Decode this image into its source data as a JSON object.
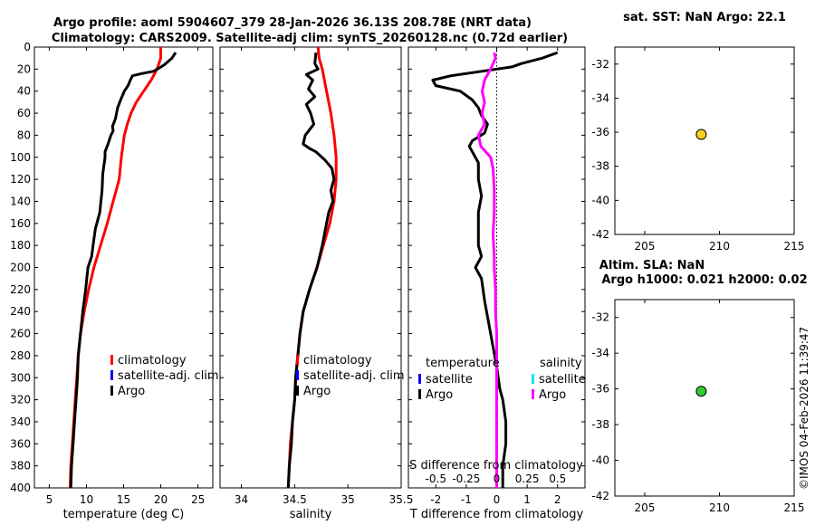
{
  "title": {
    "line1": "Argo profile: aoml 5904607_379 28-Jan-2026 36.13S 208.78E (NRT data)",
    "line2": "Climatology: CARS2009. Satellite-adj clim: synTS_20260128.nc (0.72d earlier)"
  },
  "depth_ticks": [
    "0",
    "20",
    "40",
    "60",
    "80",
    "100",
    "120",
    "140",
    "160",
    "180",
    "200",
    "220",
    "240",
    "260",
    "280",
    "300",
    "320",
    "340",
    "360",
    "380",
    "400"
  ],
  "chart_data": [
    {
      "type": "line",
      "name": "temperature-panel",
      "xlabel": "temperature (deg C)",
      "xlim": [
        3,
        27
      ],
      "ylim": [
        0,
        400
      ],
      "y_reversed": true,
      "xticks": [
        "5",
        "10",
        "15",
        "20",
        "25"
      ],
      "xtick_values": [
        5,
        10,
        15,
        20,
        25
      ],
      "legend": [
        "climatology",
        "satellite-adj. clim",
        "Argo"
      ],
      "series": [
        {
          "name": "climatology",
          "color": "#ff0000",
          "points": [
            [
              20.0,
              0
            ],
            [
              20.0,
              10
            ],
            [
              19.5,
              20
            ],
            [
              18.7,
              30
            ],
            [
              17.7,
              40
            ],
            [
              16.7,
              50
            ],
            [
              16.0,
              60
            ],
            [
              15.5,
              70
            ],
            [
              15.1,
              80
            ],
            [
              14.7,
              100
            ],
            [
              14.4,
              120
            ],
            [
              13.6,
              140
            ],
            [
              12.8,
              160
            ],
            [
              11.9,
              180
            ],
            [
              11.0,
              200
            ],
            [
              10.3,
              220
            ],
            [
              9.7,
              240
            ],
            [
              9.2,
              260
            ],
            [
              8.9,
              280
            ],
            [
              8.7,
              300
            ],
            [
              8.5,
              320
            ],
            [
              8.3,
              340
            ],
            [
              8.1,
              360
            ],
            [
              7.9,
              380
            ],
            [
              7.8,
              400
            ]
          ]
        },
        {
          "name": "Argo",
          "color": "#000000",
          "points": [
            [
              22.0,
              5
            ],
            [
              21.5,
              10
            ],
            [
              21.0,
              13
            ],
            [
              20.5,
              16
            ],
            [
              19.8,
              19
            ],
            [
              19.0,
              22
            ],
            [
              17.5,
              24
            ],
            [
              16.2,
              26
            ],
            [
              15.9,
              30
            ],
            [
              15.6,
              35
            ],
            [
              15.1,
              40
            ],
            [
              14.6,
              48
            ],
            [
              14.2,
              55
            ],
            [
              13.9,
              65
            ],
            [
              13.5,
              72
            ],
            [
              13.6,
              76
            ],
            [
              13.3,
              80
            ],
            [
              12.9,
              88
            ],
            [
              12.5,
              95
            ],
            [
              12.5,
              100
            ],
            [
              12.2,
              115
            ],
            [
              12.1,
              130
            ],
            [
              11.8,
              150
            ],
            [
              11.2,
              165
            ],
            [
              10.9,
              180
            ],
            [
              10.7,
              190
            ],
            [
              10.2,
              200
            ],
            [
              9.9,
              220
            ],
            [
              9.5,
              240
            ],
            [
              9.2,
              260
            ],
            [
              8.9,
              280
            ],
            [
              8.8,
              300
            ],
            [
              8.6,
              320
            ],
            [
              8.4,
              340
            ],
            [
              8.2,
              360
            ],
            [
              8.0,
              380
            ],
            [
              7.9,
              400
            ]
          ]
        }
      ]
    },
    {
      "type": "line",
      "name": "salinity-panel",
      "xlabel": "salinity",
      "xlim": [
        33.8,
        35.5
      ],
      "ylim": [
        0,
        400
      ],
      "y_reversed": true,
      "xticks": [
        "34",
        "34.5",
        "35",
        "35.5"
      ],
      "xtick_values": [
        34,
        34.5,
        35,
        35.5
      ],
      "legend": [
        "climatology",
        "satellite-adj. clim",
        "Argo"
      ],
      "series": [
        {
          "name": "climatology",
          "color": "#ff0000",
          "points": [
            [
              34.72,
              0
            ],
            [
              34.73,
              10
            ],
            [
              34.76,
              20
            ],
            [
              34.8,
              40
            ],
            [
              34.84,
              60
            ],
            [
              34.87,
              80
            ],
            [
              34.89,
              100
            ],
            [
              34.89,
              120
            ],
            [
              34.87,
              140
            ],
            [
              34.83,
              160
            ],
            [
              34.77,
              180
            ],
            [
              34.71,
              200
            ],
            [
              34.64,
              220
            ],
            [
              34.58,
              240
            ],
            [
              34.55,
              260
            ],
            [
              34.53,
              280
            ],
            [
              34.51,
              300
            ],
            [
              34.5,
              320
            ],
            [
              34.48,
              340
            ],
            [
              34.46,
              360
            ],
            [
              34.45,
              380
            ],
            [
              34.44,
              400
            ]
          ]
        },
        {
          "name": "Argo",
          "color": "#000000",
          "points": [
            [
              34.7,
              5
            ],
            [
              34.69,
              15
            ],
            [
              34.72,
              20
            ],
            [
              34.61,
              25
            ],
            [
              34.67,
              30
            ],
            [
              34.63,
              38
            ],
            [
              34.69,
              45
            ],
            [
              34.61,
              52
            ],
            [
              34.65,
              60
            ],
            [
              34.68,
              70
            ],
            [
              34.6,
              80
            ],
            [
              34.58,
              88
            ],
            [
              34.64,
              92
            ],
            [
              34.7,
              95
            ],
            [
              34.78,
              102
            ],
            [
              34.85,
              110
            ],
            [
              34.87,
              120
            ],
            [
              34.84,
              130
            ],
            [
              34.86,
              140
            ],
            [
              34.82,
              150
            ],
            [
              34.8,
              160
            ],
            [
              34.76,
              180
            ],
            [
              34.71,
              200
            ],
            [
              34.64,
              220
            ],
            [
              34.58,
              240
            ],
            [
              34.55,
              260
            ],
            [
              34.53,
              280
            ],
            [
              34.51,
              300
            ],
            [
              34.5,
              320
            ],
            [
              34.48,
              340
            ],
            [
              34.47,
              360
            ],
            [
              34.45,
              380
            ],
            [
              34.44,
              400
            ]
          ]
        }
      ]
    },
    {
      "type": "line",
      "name": "difference-panel",
      "xlabel": "T difference from climatology",
      "xlabel_top": "S difference from climatology",
      "xlim": [
        -2.9,
        2.9
      ],
      "ylim": [
        0,
        400
      ],
      "y_reversed": true,
      "xticks": [
        "-2",
        "-1",
        "0",
        "1",
        "2"
      ],
      "xtick_values": [
        -2,
        -1,
        0,
        1,
        2
      ],
      "s_ticks": [
        "-0.5",
        "-0.25",
        "0",
        "0.25",
        "0.5"
      ],
      "s_tick_values": [
        -0.5,
        -0.25,
        0,
        0.25,
        0.5
      ],
      "legend_t_title": "temperature",
      "legend_s_title": "salinity",
      "legend_t": [
        "satellite",
        "Argo"
      ],
      "legend_s": [
        "satellite",
        "Argo"
      ],
      "series": [
        {
          "name": "T difference Argo",
          "color": "#000000",
          "points": [
            [
              2.0,
              5
            ],
            [
              1.5,
              10
            ],
            [
              0.8,
              15
            ],
            [
              0.5,
              18
            ],
            [
              -0.5,
              22
            ],
            [
              -1.5,
              26
            ],
            [
              -2.1,
              30
            ],
            [
              -2.0,
              35
            ],
            [
              -1.2,
              40
            ],
            [
              -0.8,
              48
            ],
            [
              -0.6,
              55
            ],
            [
              -0.5,
              62
            ],
            [
              -0.3,
              70
            ],
            [
              -0.4,
              78
            ],
            [
              -0.8,
              85
            ],
            [
              -0.9,
              90
            ],
            [
              -0.8,
              95
            ],
            [
              -0.6,
              105
            ],
            [
              -0.6,
              120
            ],
            [
              -0.5,
              135
            ],
            [
              -0.6,
              150
            ],
            [
              -0.6,
              165
            ],
            [
              -0.6,
              180
            ],
            [
              -0.5,
              190
            ],
            [
              -0.7,
              200
            ],
            [
              -0.5,
              210
            ],
            [
              -0.4,
              230
            ],
            [
              -0.2,
              260
            ],
            [
              0.0,
              290
            ],
            [
              0.1,
              310
            ],
            [
              0.2,
              320
            ],
            [
              0.3,
              340
            ],
            [
              0.3,
              360
            ],
            [
              0.2,
              380
            ],
            [
              0.2,
              400
            ]
          ]
        },
        {
          "name": "S difference Argo",
          "color": "#ff00ff",
          "points": [
            [
              -0.02,
              5
            ],
            [
              -0.01,
              10
            ],
            [
              -0.05,
              20
            ],
            [
              -0.1,
              30
            ],
            [
              -0.12,
              40
            ],
            [
              -0.1,
              50
            ],
            [
              -0.12,
              60
            ],
            [
              -0.1,
              70
            ],
            [
              -0.15,
              80
            ],
            [
              -0.13,
              90
            ],
            [
              -0.05,
              100
            ],
            [
              -0.03,
              110
            ],
            [
              -0.02,
              130
            ],
            [
              -0.02,
              150
            ],
            [
              -0.03,
              170
            ],
            [
              -0.02,
              190
            ],
            [
              -0.02,
              200
            ],
            [
              -0.01,
              220
            ],
            [
              -0.01,
              240
            ],
            [
              0.0,
              260
            ],
            [
              0.0,
              280
            ],
            [
              0.0,
              300
            ],
            [
              0.0,
              320
            ],
            [
              0.0,
              340
            ],
            [
              0.0,
              360
            ],
            [
              0.0,
              380
            ],
            [
              0.0,
              400
            ]
          ]
        }
      ]
    },
    {
      "type": "scatter",
      "name": "sst-map",
      "title": "sat. SST: NaN Argo: 22.1",
      "xlim": [
        203,
        215
      ],
      "ylim": [
        -42,
        -31
      ],
      "xticks": [
        "205",
        "210",
        "215"
      ],
      "xtick_values": [
        205,
        210,
        215
      ],
      "yticks": [
        "-32",
        "-34",
        "-36",
        "-38",
        "-40",
        "-42"
      ],
      "ytick_values": [
        -32,
        -34,
        -36,
        -38,
        -40,
        -42
      ],
      "points": [
        {
          "x": 208.78,
          "y": -36.13,
          "color": "#f5d21e"
        }
      ]
    },
    {
      "type": "scatter",
      "name": "sla-map",
      "title1": "Altim. SLA: NaN",
      "title2": "Argo h1000: 0.021 h2000: 0.02",
      "xlim": [
        203,
        215
      ],
      "ylim": [
        -42,
        -31
      ],
      "xticks": [
        "205",
        "210",
        "215"
      ],
      "xtick_values": [
        205,
        210,
        215
      ],
      "yticks": [
        "-32",
        "-34",
        "-36",
        "-38",
        "-40",
        "-42"
      ],
      "ytick_values": [
        -32,
        -34,
        -36,
        -38,
        -40,
        -42
      ],
      "points": [
        {
          "x": 208.78,
          "y": -36.13,
          "color": "#33cc33"
        }
      ]
    }
  ],
  "watermark": "©IMOS 04-Feb-2026 11:39:47",
  "colors": {
    "climatology": "#ff0000",
    "satellite_clim": "#0000ff",
    "argo": "#000000",
    "s_satellite": "#00e5ff",
    "s_argo": "#ff00ff"
  }
}
